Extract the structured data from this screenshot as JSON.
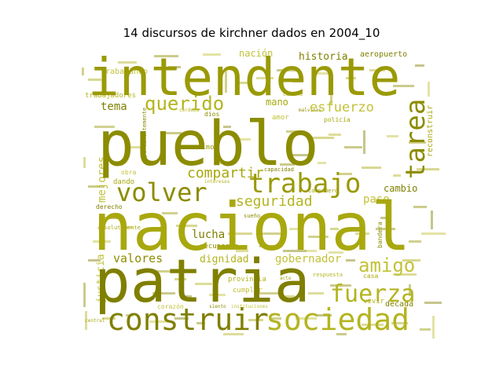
{
  "chart_data": {
    "type": "wordcloud",
    "title": "14 discursos de kirchner dados en 2004_10",
    "colors": [
      "#9a9a06",
      "#a8a80e",
      "#b4b421",
      "#8c8c00",
      "#7f7f00",
      "#c2c23a"
    ],
    "words": [
      {
        "text": "nacional",
        "weight": 100
      },
      {
        "text": "patria",
        "weight": 95
      },
      {
        "text": "pueblo",
        "weight": 92
      },
      {
        "text": "intendente",
        "weight": 80
      },
      {
        "text": "construir",
        "weight": 45
      },
      {
        "text": "sociedad",
        "weight": 44
      },
      {
        "text": "trabajo",
        "weight": 42
      },
      {
        "text": "volver",
        "weight": 38
      },
      {
        "text": "tarea",
        "weight": 38
      },
      {
        "text": "fuerza",
        "weight": 32
      },
      {
        "text": "querido",
        "weight": 28
      },
      {
        "text": "amigo",
        "weight": 26
      },
      {
        "text": "seguridad",
        "weight": 22
      },
      {
        "text": "compartir",
        "weight": 21
      },
      {
        "text": "esfuerzo",
        "weight": 20
      },
      {
        "text": "valores",
        "weight": 16
      },
      {
        "text": "dignidad",
        "weight": 15
      },
      {
        "text": "gobernador",
        "weight": 15
      },
      {
        "text": "justicia",
        "weight": 14
      },
      {
        "text": "mejores",
        "weight": 14
      },
      {
        "text": "lucha",
        "weight": 14
      },
      {
        "text": "paso",
        "weight": 13
      },
      {
        "text": "historia",
        "weight": 13
      },
      {
        "text": "nación",
        "weight": 12
      },
      {
        "text": "tema",
        "weight": 12
      },
      {
        "text": "mano",
        "weight": 11
      },
      {
        "text": "cambio",
        "weight": 11
      },
      {
        "text": "reconstruir",
        "weight": 10
      },
      {
        "text": "aeropuerto",
        "weight": 9
      },
      {
        "text": "trabajando",
        "weight": 9
      },
      {
        "text": "trabajadores",
        "weight": 8
      },
      {
        "text": "vivir",
        "weight": 8
      },
      {
        "text": "década",
        "weight": 8
      },
      {
        "text": "venimos",
        "weight": 8
      },
      {
        "text": "obra",
        "weight": 7
      },
      {
        "text": "dando",
        "weight": 7
      },
      {
        "text": "derecho",
        "weight": 7
      },
      {
        "text": "cumplir",
        "weight": 7
      },
      {
        "text": "provincia",
        "weight": 7
      },
      {
        "text": "recuperar",
        "weight": 7
      },
      {
        "text": "amor",
        "weight": 7
      },
      {
        "text": "capacidad",
        "weight": 6
      },
      {
        "text": "bandera",
        "weight": 6
      },
      {
        "text": "casa",
        "weight": 6
      },
      {
        "text": "corazón",
        "weight": 6
      },
      {
        "text": "dios",
        "weight": 6
      },
      {
        "text": "policía",
        "weight": 6
      },
      {
        "text": "cariño",
        "weight": 5
      },
      {
        "text": "compañero",
        "weight": 5
      },
      {
        "text": "sueño",
        "weight": 5
      },
      {
        "text": "respuesta",
        "weight": 5
      },
      {
        "text": "permanentemente",
        "weight": 5
      },
      {
        "text": "siento",
        "weight": 4
      },
      {
        "text": "instituciones",
        "weight": 4
      },
      {
        "text": "intereses",
        "weight": 4
      },
      {
        "text": "absolutamente",
        "weight": 4
      },
      {
        "text": "malvinas",
        "weight": 4
      },
      {
        "text": "central",
        "weight": 3
      },
      {
        "text": "córdoba",
        "weight": 3
      },
      {
        "text": "acto",
        "weight": 3
      }
    ]
  }
}
